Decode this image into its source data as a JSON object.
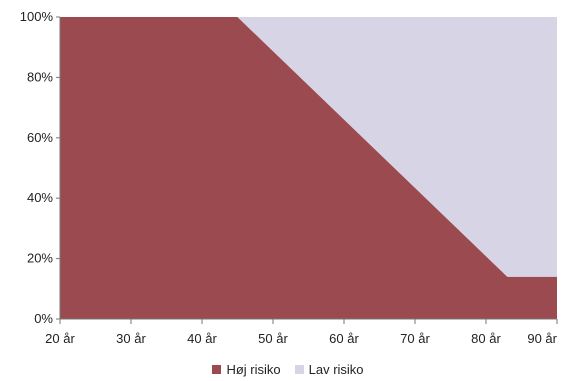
{
  "chart_data": {
    "type": "area",
    "stacked": true,
    "x": [
      20,
      45,
      83,
      90
    ],
    "xlim": [
      20,
      90
    ],
    "x_ticks": [
      20,
      30,
      40,
      50,
      60,
      70,
      80,
      90
    ],
    "x_tick_labels": [
      "20 år",
      "30 år",
      "40 år",
      "50 år",
      "60 år",
      "70 år",
      "80 år",
      "90 år"
    ],
    "ylim": [
      0,
      100
    ],
    "y_ticks": [
      0,
      20,
      40,
      60,
      80,
      100
    ],
    "y_tick_labels": [
      "0%",
      "20%",
      "40%",
      "60%",
      "80%",
      "100%"
    ],
    "series": [
      {
        "name": "Høj risiko",
        "values": [
          100,
          100,
          14,
          14
        ],
        "color": "#9b4a4f"
      },
      {
        "name": "Lav risiko",
        "values": [
          0,
          0,
          86,
          86
        ],
        "color": "#d7d4e6"
      }
    ],
    "legend_position": "bottom",
    "grid": false
  }
}
